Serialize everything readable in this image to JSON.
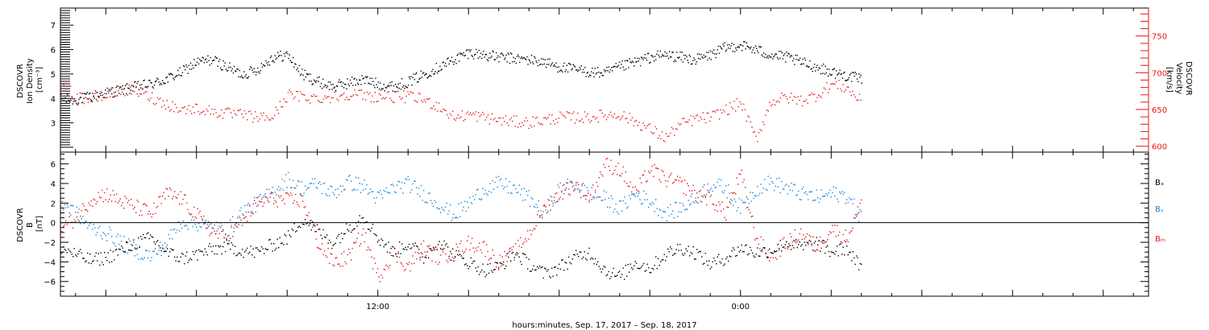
{
  "colors": {
    "black": "#000000",
    "red": "#e8141b",
    "blue": "#1a86d8"
  },
  "footer": {
    "xlabel": "hours:minutes, Sep. 17, 2017 – Sep. 18, 2017"
  },
  "chart_data": [
    {
      "type": "scatter",
      "panel": "top",
      "x_axis": {
        "unit": "hours since Sep 17 00:00",
        "range": [
          1.5,
          37.5
        ],
        "tick_labels": [
          {
            "x": 12,
            "label": "12:00"
          },
          {
            "x": 24,
            "label": "0:00"
          }
        ]
      },
      "left_axis": {
        "ylabel_lines": [
          "DSCOVR",
          "Ion Density",
          "[cm⁻³]"
        ],
        "range": [
          1.8,
          7.7
        ],
        "ticks": [
          3,
          4,
          5,
          6,
          7
        ],
        "tick_labels": [
          "3",
          "4",
          "5",
          "6",
          "7"
        ]
      },
      "right_axis": {
        "ylabel_lines": [
          "DSCOVR",
          "Velocity",
          "[km/s]"
        ],
        "range": [
          592,
          788
        ],
        "ticks": [
          600,
          650,
          700,
          750
        ],
        "tick_labels": [
          "600",
          "650",
          "700",
          "750"
        ],
        "color": "#e8141b"
      },
      "series": [
        {
          "axis": "left",
          "color": "#000000",
          "x": [
            1.5,
            2.0,
            2.5,
            3.0,
            3.5,
            4.0,
            4.5,
            5.0,
            5.5,
            6.0,
            6.5,
            7.0,
            7.5,
            8.0,
            8.5,
            9.0,
            9.5,
            10.0,
            10.5,
            11.0,
            11.5,
            12.0,
            12.5,
            13.0,
            13.5,
            14.0,
            14.5,
            15.0,
            15.5,
            16.0,
            16.5,
            17.0,
            17.5,
            18.0,
            18.5,
            19.0,
            19.5,
            20.0,
            20.5,
            21.0,
            21.5,
            22.0,
            22.5,
            23.0,
            23.5,
            24.0,
            24.5,
            25.0,
            25.5,
            26.0,
            26.5,
            27.0,
            27.5,
            28.0
          ],
          "y": [
            4.0,
            3.95,
            4.1,
            4.25,
            4.35,
            4.5,
            4.6,
            4.8,
            5.1,
            5.5,
            5.6,
            5.3,
            5.0,
            5.2,
            5.7,
            5.8,
            5.0,
            4.7,
            4.5,
            4.65,
            4.8,
            4.6,
            4.5,
            4.7,
            5.0,
            5.3,
            5.6,
            5.9,
            5.8,
            5.7,
            5.65,
            5.6,
            5.5,
            5.3,
            5.2,
            5.1,
            5.05,
            5.3,
            5.5,
            5.7,
            5.8,
            5.7,
            5.6,
            5.8,
            6.1,
            6.2,
            6.0,
            5.8,
            5.7,
            5.5,
            5.3,
            5.1,
            4.95,
            4.8
          ]
        },
        {
          "axis": "right",
          "color": "#e8141b",
          "x": [
            1.5,
            2.0,
            2.5,
            3.0,
            3.5,
            4.0,
            4.5,
            5.0,
            5.5,
            6.0,
            6.5,
            7.0,
            7.5,
            8.0,
            8.5,
            9.0,
            9.5,
            10.0,
            10.5,
            11.0,
            11.5,
            12.0,
            12.5,
            13.0,
            13.5,
            14.0,
            14.5,
            15.0,
            15.5,
            16.0,
            16.5,
            17.0,
            17.5,
            18.0,
            18.5,
            19.0,
            19.5,
            20.0,
            20.5,
            21.0,
            21.5,
            22.0,
            22.5,
            23.0,
            23.5,
            24.0,
            24.5,
            25.0,
            25.5,
            26.0,
            26.5,
            27.0,
            27.5,
            28.0
          ],
          "y": [
            685,
            668,
            664,
            670,
            678,
            675,
            667,
            658,
            650,
            652,
            648,
            645,
            643,
            640,
            640,
            670,
            668,
            666,
            668,
            672,
            670,
            668,
            668,
            668,
            664,
            655,
            640,
            644,
            640,
            636,
            634,
            633,
            636,
            640,
            640,
            640,
            643,
            644,
            634,
            624,
            612,
            630,
            638,
            640,
            650,
            660,
            610,
            662,
            667,
            663,
            670,
            685,
            680,
            660
          ]
        }
      ]
    },
    {
      "type": "scatter",
      "panel": "bottom",
      "x_axis": {
        "unit": "hours since Sep 17 00:00",
        "range": [
          1.5,
          37.5
        ],
        "tick_labels": [
          {
            "x": 12,
            "label": "12:00"
          },
          {
            "x": 24,
            "label": "0:00"
          }
        ]
      },
      "left_axis": {
        "ylabel_lines": [
          "DSCOVR",
          "B",
          "[nT]"
        ],
        "range": [
          -7.5,
          7.2
        ],
        "ticks": [
          -6,
          -4,
          -2,
          0,
          2,
          4,
          6
        ],
        "tick_labels": [
          "−6",
          "−4",
          "−2",
          "0",
          "2",
          "4",
          "6"
        ]
      },
      "legend": [
        "Bₓ",
        "Bᵧ",
        "Bₘ"
      ],
      "series": [
        {
          "name": "Bx",
          "color": "#000000",
          "x": [
            1.5,
            2.0,
            2.5,
            3.0,
            3.5,
            4.0,
            4.5,
            5.0,
            5.5,
            6.0,
            6.5,
            7.0,
            7.5,
            8.0,
            8.5,
            9.0,
            9.5,
            10.0,
            10.5,
            11.0,
            11.5,
            12.0,
            12.5,
            13.0,
            13.5,
            14.0,
            14.5,
            15.0,
            15.5,
            16.0,
            16.5,
            17.0,
            17.5,
            18.0,
            18.5,
            19.0,
            19.5,
            20.0,
            20.5,
            21.0,
            21.5,
            22.0,
            22.5,
            23.0,
            23.5,
            24.0,
            24.5,
            25.0,
            25.5,
            26.0,
            26.5,
            27.0,
            27.5,
            28.0
          ],
          "y": [
            -2.5,
            -3.2,
            -3.8,
            -3.5,
            -2.8,
            -2.0,
            -1.5,
            -3.0,
            -3.6,
            -3.2,
            -2.7,
            -2.4,
            -2.8,
            -3.0,
            -2.2,
            -1.5,
            0.5,
            -0.8,
            -2.0,
            -0.5,
            0.8,
            -1.5,
            -3.0,
            -2.0,
            -3.5,
            -1.8,
            -3.2,
            -4.0,
            -4.8,
            -4.5,
            -3.0,
            -4.2,
            -5.2,
            -4.5,
            -3.5,
            -3.0,
            -4.8,
            -5.5,
            -4.0,
            -4.6,
            -3.2,
            -2.5,
            -3.0,
            -4.2,
            -3.5,
            -2.5,
            -3.0,
            -2.8,
            -2.0,
            -2.5,
            -2.0,
            -3.0,
            -2.5,
            -4.8
          ]
        },
        {
          "name": "By",
          "color": "#1a86d8",
          "x": [
            1.5,
            2.0,
            2.5,
            3.0,
            3.5,
            4.0,
            4.5,
            5.0,
            5.5,
            6.0,
            6.5,
            7.0,
            7.5,
            8.0,
            8.5,
            9.0,
            9.5,
            10.0,
            10.5,
            11.0,
            11.5,
            12.0,
            12.5,
            13.0,
            13.5,
            14.0,
            14.5,
            15.0,
            15.5,
            16.0,
            16.5,
            17.0,
            17.5,
            18.0,
            18.5,
            19.0,
            19.5,
            20.0,
            20.5,
            21.0,
            21.5,
            22.0,
            22.5,
            23.0,
            23.5,
            24.0,
            24.5,
            25.0,
            25.5,
            26.0,
            26.5,
            27.0,
            27.5,
            28.0
          ],
          "y": [
            2.2,
            1.0,
            -0.5,
            -1.0,
            -2.0,
            -2.8,
            -3.4,
            -2.0,
            0.2,
            0.0,
            -0.4,
            -0.8,
            1.2,
            2.0,
            3.2,
            4.5,
            3.5,
            4.0,
            3.0,
            4.2,
            3.8,
            2.5,
            3.6,
            4.0,
            3.0,
            2.0,
            0.8,
            2.0,
            3.5,
            4.0,
            3.5,
            2.5,
            1.0,
            3.5,
            4.0,
            3.0,
            2.5,
            1.5,
            3.0,
            2.2,
            1.0,
            1.5,
            2.5,
            4.0,
            3.5,
            1.5,
            3.5,
            4.2,
            3.6,
            3.0,
            2.6,
            3.0,
            2.8,
            0.5
          ]
        },
        {
          "name": "Bz",
          "color": "#e8141b",
          "x": [
            1.5,
            2.0,
            2.5,
            3.0,
            3.5,
            4.0,
            4.5,
            5.0,
            5.5,
            6.0,
            6.5,
            7.0,
            7.5,
            8.0,
            8.5,
            9.0,
            9.5,
            10.0,
            10.5,
            11.0,
            11.5,
            12.0,
            12.5,
            13.0,
            13.5,
            14.0,
            14.5,
            15.0,
            15.5,
            16.0,
            16.5,
            17.0,
            17.5,
            18.0,
            18.5,
            19.0,
            19.5,
            20.0,
            20.5,
            21.0,
            21.5,
            22.0,
            22.5,
            23.0,
            23.5,
            24.0,
            24.5,
            25.0,
            25.5,
            26.0,
            26.5,
            27.0,
            27.5,
            28.0
          ],
          "y": [
            -0.5,
            0.5,
            2.5,
            3.0,
            2.2,
            1.6,
            1.0,
            3.0,
            2.5,
            0.8,
            -0.8,
            -1.5,
            0.2,
            2.0,
            2.5,
            2.3,
            2.4,
            -2.0,
            -4.0,
            -3.5,
            -1.0,
            -5.5,
            -3.0,
            -4.5,
            -2.5,
            -3.5,
            -3.0,
            -2.0,
            -2.5,
            -4.0,
            -3.0,
            -1.0,
            1.5,
            3.0,
            4.0,
            2.5,
            6.0,
            5.5,
            3.0,
            5.5,
            4.5,
            4.0,
            3.0,
            2.5,
            1.0,
            5.0,
            -1.5,
            -3.5,
            -2.0,
            -1.0,
            -2.5,
            -0.5,
            -1.5,
            2.0
          ]
        }
      ]
    }
  ]
}
